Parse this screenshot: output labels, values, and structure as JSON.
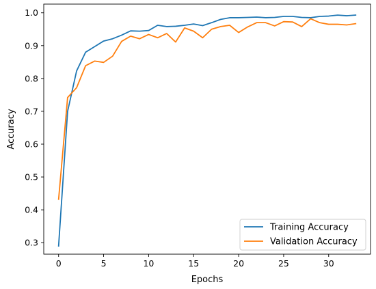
{
  "chart_data": {
    "type": "line",
    "title": "",
    "xlabel": "Epochs",
    "ylabel": "Accuracy",
    "xlim": [
      -1.65,
      34.65
    ],
    "ylim": [
      0.265,
      1.0265
    ],
    "xticks": [
      0,
      5,
      10,
      15,
      20,
      25,
      30
    ],
    "yticks": [
      0.3,
      0.4,
      0.5,
      0.6,
      0.7,
      0.8,
      0.9,
      1.0
    ],
    "ytick_labels": [
      "0.3",
      "0.4",
      "0.5",
      "0.6",
      "0.7",
      "0.8",
      "0.9",
      "1.0"
    ],
    "legend_position": "lower-right",
    "grid": false,
    "x": [
      0,
      1,
      2,
      3,
      4,
      5,
      6,
      7,
      8,
      9,
      10,
      11,
      12,
      13,
      14,
      15,
      16,
      17,
      18,
      19,
      20,
      21,
      22,
      23,
      24,
      25,
      26,
      27,
      28,
      29,
      30,
      31,
      32,
      33
    ],
    "series": [
      {
        "name": "Training Accuracy",
        "color": "#1f77b4",
        "values": [
          0.29,
          0.7,
          0.823,
          0.88,
          0.897,
          0.914,
          0.921,
          0.932,
          0.945,
          0.944,
          0.946,
          0.962,
          0.958,
          0.959,
          0.962,
          0.966,
          0.961,
          0.97,
          0.98,
          0.985,
          0.985,
          0.986,
          0.987,
          0.985,
          0.986,
          0.989,
          0.989,
          0.986,
          0.985,
          0.989,
          0.99,
          0.993,
          0.991,
          0.993
        ]
      },
      {
        "name": "Validation Accuracy",
        "color": "#ff7f0e",
        "values": [
          0.432,
          0.742,
          0.772,
          0.839,
          0.853,
          0.849,
          0.868,
          0.913,
          0.929,
          0.921,
          0.934,
          0.924,
          0.937,
          0.911,
          0.954,
          0.944,
          0.924,
          0.95,
          0.958,
          0.962,
          0.94,
          0.957,
          0.97,
          0.97,
          0.96,
          0.973,
          0.972,
          0.958,
          0.982,
          0.97,
          0.965,
          0.965,
          0.963,
          0.967
        ]
      }
    ]
  }
}
